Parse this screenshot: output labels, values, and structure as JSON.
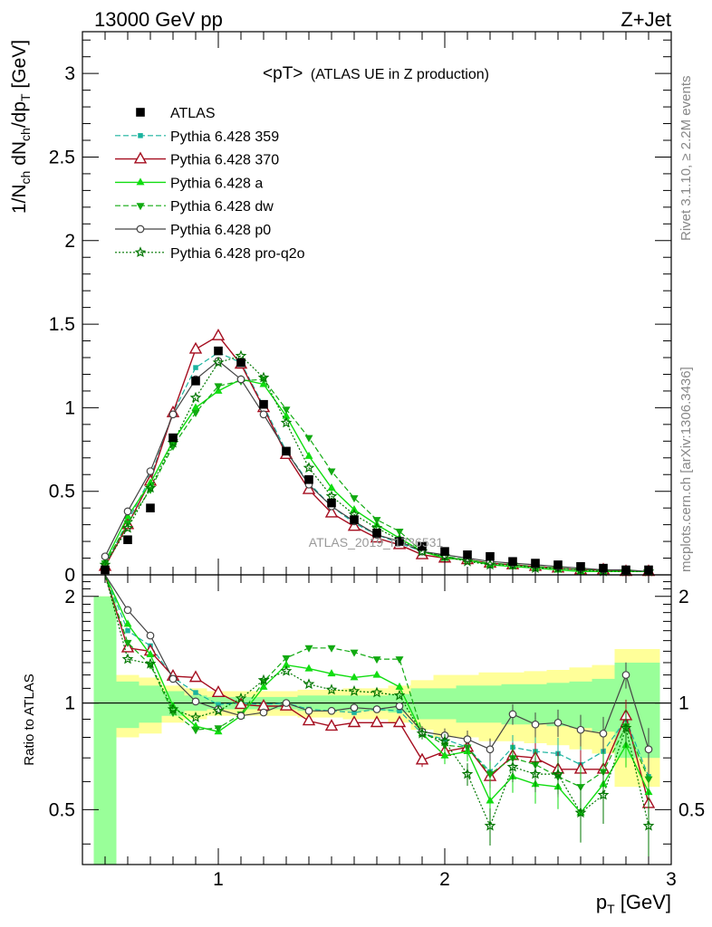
{
  "header": {
    "left": "13000 GeV pp",
    "right": "Z+Jet"
  },
  "side_text": {
    "rivet": "Rivet 3.1.10, ≥ 2.2M events",
    "mcplots": "mcplots.cern.ch [arXiv:1306.3436]"
  },
  "watermark": "ATLAS_2019_I1736531",
  "plot_title": {
    "main": "<pT>",
    "sub": "(ATLAS UE in Z production)"
  },
  "axes": {
    "ylabel_top": "1/N_ch dN_ch/dp_T [GeV]",
    "ylabel_ratio": "Ratio to ATLAS",
    "xlabel": "p_T [GeV]"
  },
  "colors": {
    "data": "#000000",
    "p359": "#1ab39e",
    "p370": "#a50d1f",
    "pa": "#11dd11",
    "pdw": "#11aa11",
    "pp0": "#444444",
    "pq2o": "#007700",
    "band_inner": "#99ff99",
    "band_outer": "#ffff99"
  },
  "chart_data": [
    {
      "type": "scatter",
      "panel": "main",
      "x": [
        0.5,
        0.6,
        0.7,
        0.8,
        0.9,
        1.0,
        1.1,
        1.2,
        1.3,
        1.4,
        1.5,
        1.6,
        1.7,
        1.8,
        1.9,
        2.0,
        2.1,
        2.2,
        2.3,
        2.4,
        2.5,
        2.6,
        2.7,
        2.8,
        2.9
      ],
      "xlim": [
        0.4,
        3.0
      ],
      "ylim": [
        0,
        3.25
      ],
      "xticks": [
        "1",
        "2",
        "3"
      ],
      "yticks": [
        "0",
        "0.5",
        "1",
        "1.5",
        "2",
        "2.5",
        "3"
      ],
      "series": [
        {
          "name": "ATLAS",
          "key": "data",
          "style": "data",
          "values": [
            0.03,
            0.21,
            0.4,
            0.82,
            1.16,
            1.34,
            1.27,
            1.02,
            0.74,
            0.57,
            0.43,
            0.33,
            0.25,
            0.2,
            0.17,
            0.14,
            0.12,
            0.11,
            0.08,
            0.07,
            0.06,
            0.05,
            0.04,
            0.03,
            0.03
          ]
        },
        {
          "name": "Pythia 6.428 359",
          "key": "p359",
          "style": "mc",
          "values": [
            0.06,
            0.32,
            0.58,
            0.97,
            1.24,
            1.33,
            1.27,
            1.01,
            0.74,
            0.55,
            0.41,
            0.31,
            0.24,
            0.19,
            0.14,
            0.11,
            0.09,
            0.07,
            0.06,
            0.05,
            0.04,
            0.03,
            0.03,
            0.02,
            0.02
          ]
        },
        {
          "name": "Pythia 6.428 370",
          "key": "p370",
          "style": "mc",
          "values": [
            0.05,
            0.3,
            0.56,
            0.97,
            1.35,
            1.43,
            1.26,
            1.0,
            0.72,
            0.51,
            0.37,
            0.29,
            0.22,
            0.18,
            0.12,
            0.1,
            0.09,
            0.07,
            0.06,
            0.05,
            0.04,
            0.03,
            0.03,
            0.02,
            0.02
          ]
        },
        {
          "name": "Pythia 6.428 a",
          "key": "pa",
          "style": "mc",
          "values": [
            0.08,
            0.35,
            0.55,
            0.8,
            1.0,
            1.1,
            1.17,
            1.14,
            0.95,
            0.71,
            0.52,
            0.39,
            0.3,
            0.22,
            0.14,
            0.1,
            0.09,
            0.06,
            0.05,
            0.04,
            0.03,
            0.02,
            0.02,
            0.02,
            0.02
          ]
        },
        {
          "name": "Pythia 6.428 dw",
          "key": "pdw",
          "style": "mc",
          "values": [
            0.07,
            0.31,
            0.51,
            0.77,
            0.97,
            1.13,
            1.16,
            1.17,
            0.99,
            0.82,
            0.62,
            0.46,
            0.33,
            0.26,
            0.14,
            0.11,
            0.09,
            0.07,
            0.06,
            0.05,
            0.04,
            0.03,
            0.03,
            0.02,
            0.02
          ]
        },
        {
          "name": "Pythia 6.428 p0",
          "key": "pp0",
          "style": "mc",
          "values": [
            0.11,
            0.38,
            0.62,
            0.96,
            1.17,
            1.28,
            1.17,
            0.96,
            0.74,
            0.54,
            0.41,
            0.32,
            0.24,
            0.2,
            0.14,
            0.12,
            0.1,
            0.08,
            0.07,
            0.06,
            0.05,
            0.04,
            0.03,
            0.03,
            0.02
          ]
        },
        {
          "name": "Pythia 6.428 pro-q2o",
          "key": "pq2o",
          "style": "mc",
          "values": [
            0.06,
            0.28,
            0.52,
            0.79,
            1.06,
            1.27,
            1.31,
            1.18,
            0.91,
            0.64,
            0.47,
            0.36,
            0.28,
            0.21,
            0.14,
            0.11,
            0.08,
            0.06,
            0.06,
            0.04,
            0.04,
            0.03,
            0.02,
            0.02,
            0.02
          ]
        }
      ]
    },
    {
      "type": "line",
      "panel": "ratio",
      "x": [
        0.5,
        0.6,
        0.7,
        0.8,
        0.9,
        1.0,
        1.1,
        1.2,
        1.3,
        1.4,
        1.5,
        1.6,
        1.7,
        1.8,
        1.9,
        2.0,
        2.1,
        2.2,
        2.3,
        2.4,
        2.5,
        2.6,
        2.7,
        2.8,
        2.9
      ],
      "xlim": [
        0.4,
        3.0
      ],
      "ylim": [
        0.35,
        2.3
      ],
      "xticks": [
        "1",
        "2",
        "3"
      ],
      "yticks": [
        "0.5",
        "1",
        "2"
      ],
      "band_inner": [
        1.0,
        0.15,
        0.12,
        0.08,
        0.05,
        0.04,
        0.04,
        0.04,
        0.04,
        0.05,
        0.05,
        0.05,
        0.05,
        0.06,
        0.1,
        0.1,
        0.12,
        0.12,
        0.13,
        0.13,
        0.14,
        0.15,
        0.17,
        0.3,
        0.3
      ],
      "band_outer": [
        1.0,
        0.2,
        0.18,
        0.12,
        0.1,
        0.08,
        0.08,
        0.08,
        0.08,
        0.09,
        0.09,
        0.1,
        0.1,
        0.12,
        0.16,
        0.2,
        0.2,
        0.22,
        0.22,
        0.23,
        0.24,
        0.26,
        0.28,
        0.42,
        0.42
      ],
      "series": [
        {
          "key": "p359",
          "values": [
            2.3,
            1.6,
            1.45,
            1.18,
            1.07,
            0.99,
            1.0,
            0.99,
            1.0,
            0.96,
            0.95,
            0.94,
            0.96,
            0.95,
            0.82,
            0.79,
            0.75,
            0.64,
            0.75,
            0.73,
            0.72,
            0.67,
            0.73,
            0.9,
            0.62
          ]
        },
        {
          "key": "p370",
          "values": [
            2.3,
            1.43,
            1.4,
            1.19,
            1.18,
            1.07,
            0.99,
            0.98,
            0.98,
            0.89,
            0.86,
            0.88,
            0.88,
            0.88,
            0.69,
            0.73,
            0.75,
            0.62,
            0.71,
            0.7,
            0.65,
            0.65,
            0.65,
            0.92,
            0.52
          ]
        },
        {
          "key": "pa",
          "values": [
            2.3,
            1.67,
            1.37,
            0.98,
            0.86,
            0.83,
            0.92,
            1.11,
            1.28,
            1.25,
            1.21,
            1.18,
            1.2,
            1.11,
            0.82,
            0.71,
            0.73,
            0.53,
            0.62,
            0.59,
            0.58,
            0.49,
            0.59,
            0.76,
            0.56
          ]
        },
        {
          "key": "pdw",
          "values": [
            2.3,
            1.48,
            1.28,
            0.94,
            0.84,
            0.85,
            0.93,
            1.15,
            1.34,
            1.43,
            1.43,
            1.39,
            1.33,
            1.33,
            0.83,
            0.76,
            0.75,
            0.63,
            0.7,
            0.67,
            0.62,
            0.58,
            0.64,
            0.86,
            0.61
          ]
        },
        {
          "key": "pp0",
          "values": [
            2.3,
            1.83,
            1.55,
            1.17,
            1.01,
            0.96,
            0.92,
            0.94,
            1.0,
            0.95,
            0.95,
            0.97,
            0.96,
            0.98,
            0.83,
            0.81,
            0.79,
            0.74,
            0.93,
            0.87,
            0.88,
            0.84,
            0.82,
            1.2,
            0.74
          ]
        },
        {
          "key": "pq2o",
          "values": [
            2.3,
            1.33,
            1.29,
            0.96,
            0.91,
            0.95,
            1.03,
            1.16,
            1.23,
            1.13,
            1.09,
            1.08,
            1.07,
            1.05,
            0.82,
            0.78,
            0.63,
            0.45,
            0.66,
            0.63,
            0.63,
            0.49,
            0.55,
            0.85,
            0.45
          ]
        }
      ]
    }
  ]
}
